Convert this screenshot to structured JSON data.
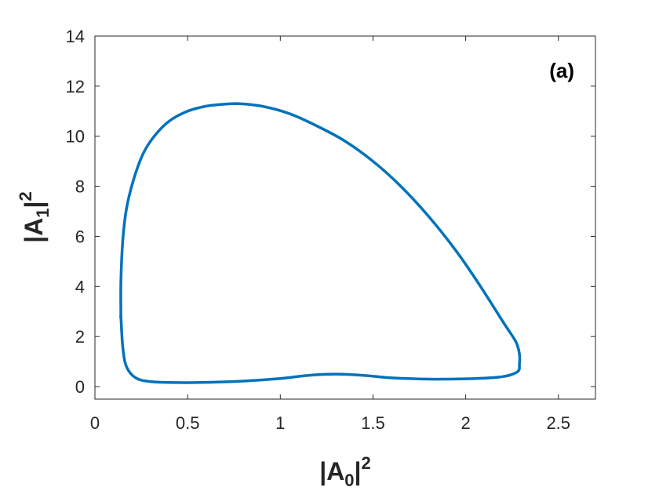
{
  "chart_data": {
    "type": "line",
    "annotation": "(a)",
    "xlabel": {
      "base": "|A",
      "sub": "0",
      "tail": "|",
      "sup": "2"
    },
    "ylabel": {
      "base": "|A",
      "sub": "1",
      "tail": "|",
      "sup": "2"
    },
    "xlim": [
      0,
      2.7
    ],
    "ylim": [
      -0.5,
      14
    ],
    "xticks": [
      0,
      0.5,
      1,
      1.5,
      2,
      2.5
    ],
    "xtick_labels": [
      "0",
      "0.5",
      "1",
      "1.5",
      "2",
      "2.5"
    ],
    "yticks": [
      0,
      2,
      4,
      6,
      8,
      10,
      12,
      14
    ],
    "ytick_labels": [
      "0",
      "2",
      "4",
      "6",
      "8",
      "10",
      "12",
      "14"
    ],
    "grid": false,
    "colors": {
      "line": "#0072bd",
      "axes": "#262626"
    },
    "series": [
      {
        "closed": true,
        "x": [
          0.14,
          0.14,
          0.15,
          0.17,
          0.21,
          0.26,
          0.32,
          0.4,
          0.5,
          0.6,
          0.7,
          0.78,
          0.9,
          1.05,
          1.2,
          1.35,
          1.5,
          1.65,
          1.8,
          1.95,
          2.08,
          2.2,
          2.27,
          2.29,
          2.29,
          2.28,
          2.2,
          2.05,
          1.9,
          1.8,
          1.6,
          1.45,
          1.3,
          1.15,
          1.0,
          0.8,
          0.6,
          0.45,
          0.3,
          0.22,
          0.17,
          0.15,
          0.14
        ],
        "y": [
          2.8,
          4.2,
          5.8,
          7.1,
          8.3,
          9.3,
          10.0,
          10.6,
          11.0,
          11.2,
          11.28,
          11.3,
          11.2,
          10.9,
          10.4,
          9.8,
          9.0,
          8.0,
          6.8,
          5.4,
          4.0,
          2.6,
          1.8,
          1.3,
          0.9,
          0.6,
          0.4,
          0.32,
          0.3,
          0.3,
          0.35,
          0.45,
          0.5,
          0.45,
          0.32,
          0.22,
          0.17,
          0.16,
          0.2,
          0.35,
          0.8,
          1.6,
          2.8
        ]
      }
    ]
  }
}
